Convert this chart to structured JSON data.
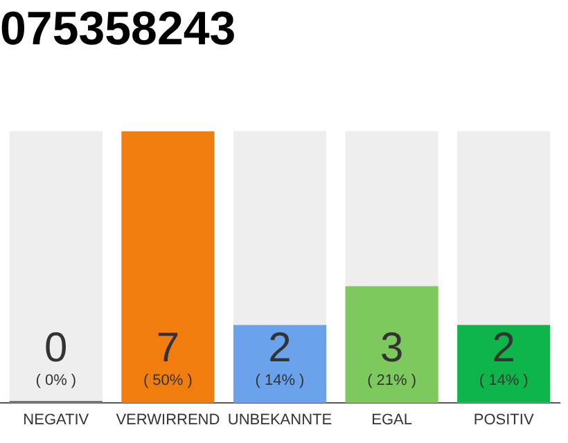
{
  "chart_data": {
    "type": "bar",
    "title": "075358243",
    "categories": [
      "NEGATIV",
      "VERWIRREND",
      "UNBEKANNTE",
      "EGAL",
      "POSITIV"
    ],
    "values": [
      0,
      7,
      2,
      3,
      2
    ],
    "colors": [
      "#555555",
      "#f07d0e",
      "#6aa3ec",
      "#7dc95e",
      "#0db54a"
    ],
    "tick_labels": "x",
    "grid": false,
    "legend": false,
    "value_labels": [
      "0\n( 0% )",
      "7\n( 50% )",
      "2\n( 14% )",
      "3\n( 21% )",
      "2\n( 14% )"
    ]
  }
}
